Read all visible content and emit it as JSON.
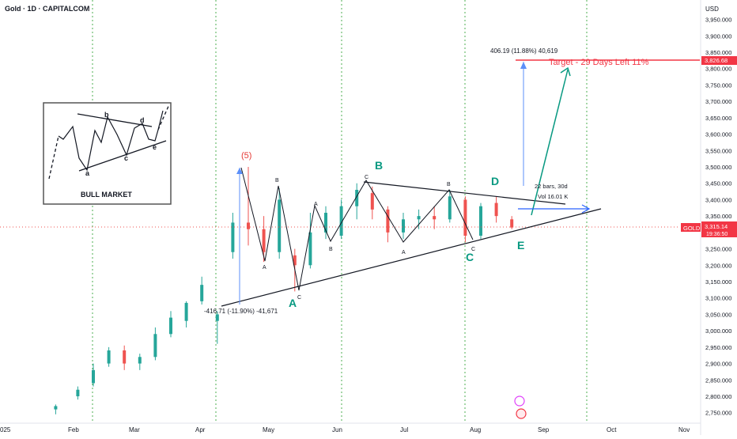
{
  "header": {
    "symbol_title": "Gold · 1D · CAPITALCOM"
  },
  "price_axis": {
    "currency": "USD",
    "ticks": [
      "3,950.000",
      "3,900.000",
      "3,850.000",
      "3,800.000",
      "3,750.000",
      "3,700.000",
      "3,650.000",
      "3,600.000",
      "3,550.000",
      "3,500.000",
      "3,450.000",
      "3,400.000",
      "3,350.000",
      "3,300.000",
      "3,250.000",
      "3,200.000",
      "3,150.000",
      "3,100.000",
      "3,050.000",
      "3,000.000",
      "2,950.000",
      "2,900.000",
      "2,850.000",
      "2,800.000",
      "2,750.000"
    ],
    "tick_values": [
      3950,
      3900,
      3850,
      3800,
      3750,
      3700,
      3650,
      3600,
      3550,
      3500,
      3450,
      3400,
      3350,
      3300,
      3250,
      3200,
      3150,
      3100,
      3050,
      3000,
      2950,
      2900,
      2850,
      2800,
      2750
    ],
    "symbol_badge": "GOLD",
    "last_price_label": "3,315.14",
    "countdown_label": "19:36:50",
    "target_price_label": "3,826.68",
    "last_price": 3315.14,
    "target_price": 3826.68
  },
  "time_axis": {
    "labels": [
      "025",
      "Feb",
      "Mar",
      "Apr",
      "May",
      "Jun",
      "Jul",
      "Aug",
      "Sep",
      "Oct",
      "Nov"
    ]
  },
  "annotations": {
    "wave_5": "(5)",
    "wave_A_big": "A",
    "wave_B_big": "B",
    "wave_C_big": "C",
    "wave_D_big": "D",
    "wave_E_big": "E",
    "sub_A1": "A",
    "sub_B1": "B",
    "sub_C1": "C",
    "sub_A2": "A",
    "sub_B2": "B",
    "sub_C2": "C",
    "sub_A3": "A",
    "sub_B3": "B",
    "sub_C3": "C",
    "target_text": "Target - 29 Days Left 11%",
    "measure_up": "406.19 (11.88%) 40,619",
    "measure_down": "-416.71 (-11.90%) -41,671",
    "bars_info": "22 bars, 30d",
    "vol_info": "Vol 16.01 K"
  },
  "inset": {
    "title": "BULL MARKET",
    "labels": [
      "a",
      "b",
      "c",
      "d",
      "e"
    ]
  },
  "colors": {
    "up": "#26a69a",
    "down": "#ef5350",
    "target": "#f23645",
    "wave_green": "#089981",
    "measure_blue": "#5b8ff9",
    "vertical_guides": "#4caf50"
  },
  "chart_data": {
    "type": "candlestick",
    "symbol": "Gold",
    "interval": "1D",
    "source": "CAPITALCOM",
    "y_range": [
      2730,
      3990
    ],
    "ohlc": [
      {
        "date": "2025-01-24",
        "open": 2760,
        "high": 2775,
        "low": 2745,
        "close": 2770
      },
      {
        "date": "2025-02-03",
        "open": 2800,
        "high": 2830,
        "low": 2790,
        "close": 2820
      },
      {
        "date": "2025-02-10",
        "open": 2840,
        "high": 2900,
        "low": 2830,
        "close": 2880
      },
      {
        "date": "2025-02-17",
        "open": 2900,
        "high": 2950,
        "low": 2890,
        "close": 2940
      },
      {
        "date": "2025-02-24",
        "open": 2940,
        "high": 2955,
        "low": 2880,
        "close": 2900
      },
      {
        "date": "2025-03-03",
        "open": 2900,
        "high": 2930,
        "low": 2880,
        "close": 2920
      },
      {
        "date": "2025-03-10",
        "open": 2920,
        "high": 3010,
        "low": 2910,
        "close": 2990
      },
      {
        "date": "2025-03-17",
        "open": 2990,
        "high": 3060,
        "low": 2980,
        "close": 3040
      },
      {
        "date": "2025-03-24",
        "open": 3030,
        "high": 3090,
        "low": 3010,
        "close": 3085
      },
      {
        "date": "2025-03-31",
        "open": 3090,
        "high": 3165,
        "low": 3080,
        "close": 3140
      },
      {
        "date": "2025-04-07",
        "open": 3030,
        "high": 3060,
        "low": 2960,
        "close": 3050
      },
      {
        "date": "2025-04-14",
        "open": 3240,
        "high": 3360,
        "low": 3220,
        "close": 3330
      },
      {
        "date": "2025-04-21",
        "open": 3330,
        "high": 3500,
        "low": 3260,
        "close": 3310
      },
      {
        "date": "2025-04-28",
        "open": 3310,
        "high": 3350,
        "low": 3210,
        "close": 3240
      },
      {
        "date": "2025-05-05",
        "open": 3240,
        "high": 3435,
        "low": 3220,
        "close": 3400
      },
      {
        "date": "2025-05-12",
        "open": 3230,
        "high": 3250,
        "low": 3120,
        "close": 3200
      },
      {
        "date": "2025-05-19",
        "open": 3200,
        "high": 3360,
        "low": 3190,
        "close": 3300
      },
      {
        "date": "2025-05-26",
        "open": 3300,
        "high": 3380,
        "low": 3280,
        "close": 3360
      },
      {
        "date": "2025-06-02",
        "open": 3290,
        "high": 3400,
        "low": 3280,
        "close": 3380
      },
      {
        "date": "2025-06-09",
        "open": 3380,
        "high": 3450,
        "low": 3340,
        "close": 3430
      },
      {
        "date": "2025-06-16",
        "open": 3420,
        "high": 3440,
        "low": 3340,
        "close": 3370
      },
      {
        "date": "2025-06-23",
        "open": 3370,
        "high": 3380,
        "low": 3270,
        "close": 3300
      },
      {
        "date": "2025-06-30",
        "open": 3300,
        "high": 3360,
        "low": 3280,
        "close": 3340
      },
      {
        "date": "2025-07-07",
        "open": 3340,
        "high": 3370,
        "low": 3310,
        "close": 3350
      },
      {
        "date": "2025-07-14",
        "open": 3350,
        "high": 3380,
        "low": 3310,
        "close": 3340
      },
      {
        "date": "2025-07-21",
        "open": 3340,
        "high": 3430,
        "low": 3330,
        "close": 3410
      },
      {
        "date": "2025-07-28",
        "open": 3400,
        "high": 3410,
        "low": 3270,
        "close": 3290
      },
      {
        "date": "2025-08-04",
        "open": 3290,
        "high": 3390,
        "low": 3280,
        "close": 3380
      },
      {
        "date": "2025-08-11",
        "open": 3390,
        "high": 3410,
        "low": 3330,
        "close": 3350
      },
      {
        "date": "2025-08-18",
        "open": 3340,
        "high": 3350,
        "low": 3310,
        "close": 3315
      }
    ],
    "last_price": 3315.14,
    "target_price": 3826.68
  }
}
